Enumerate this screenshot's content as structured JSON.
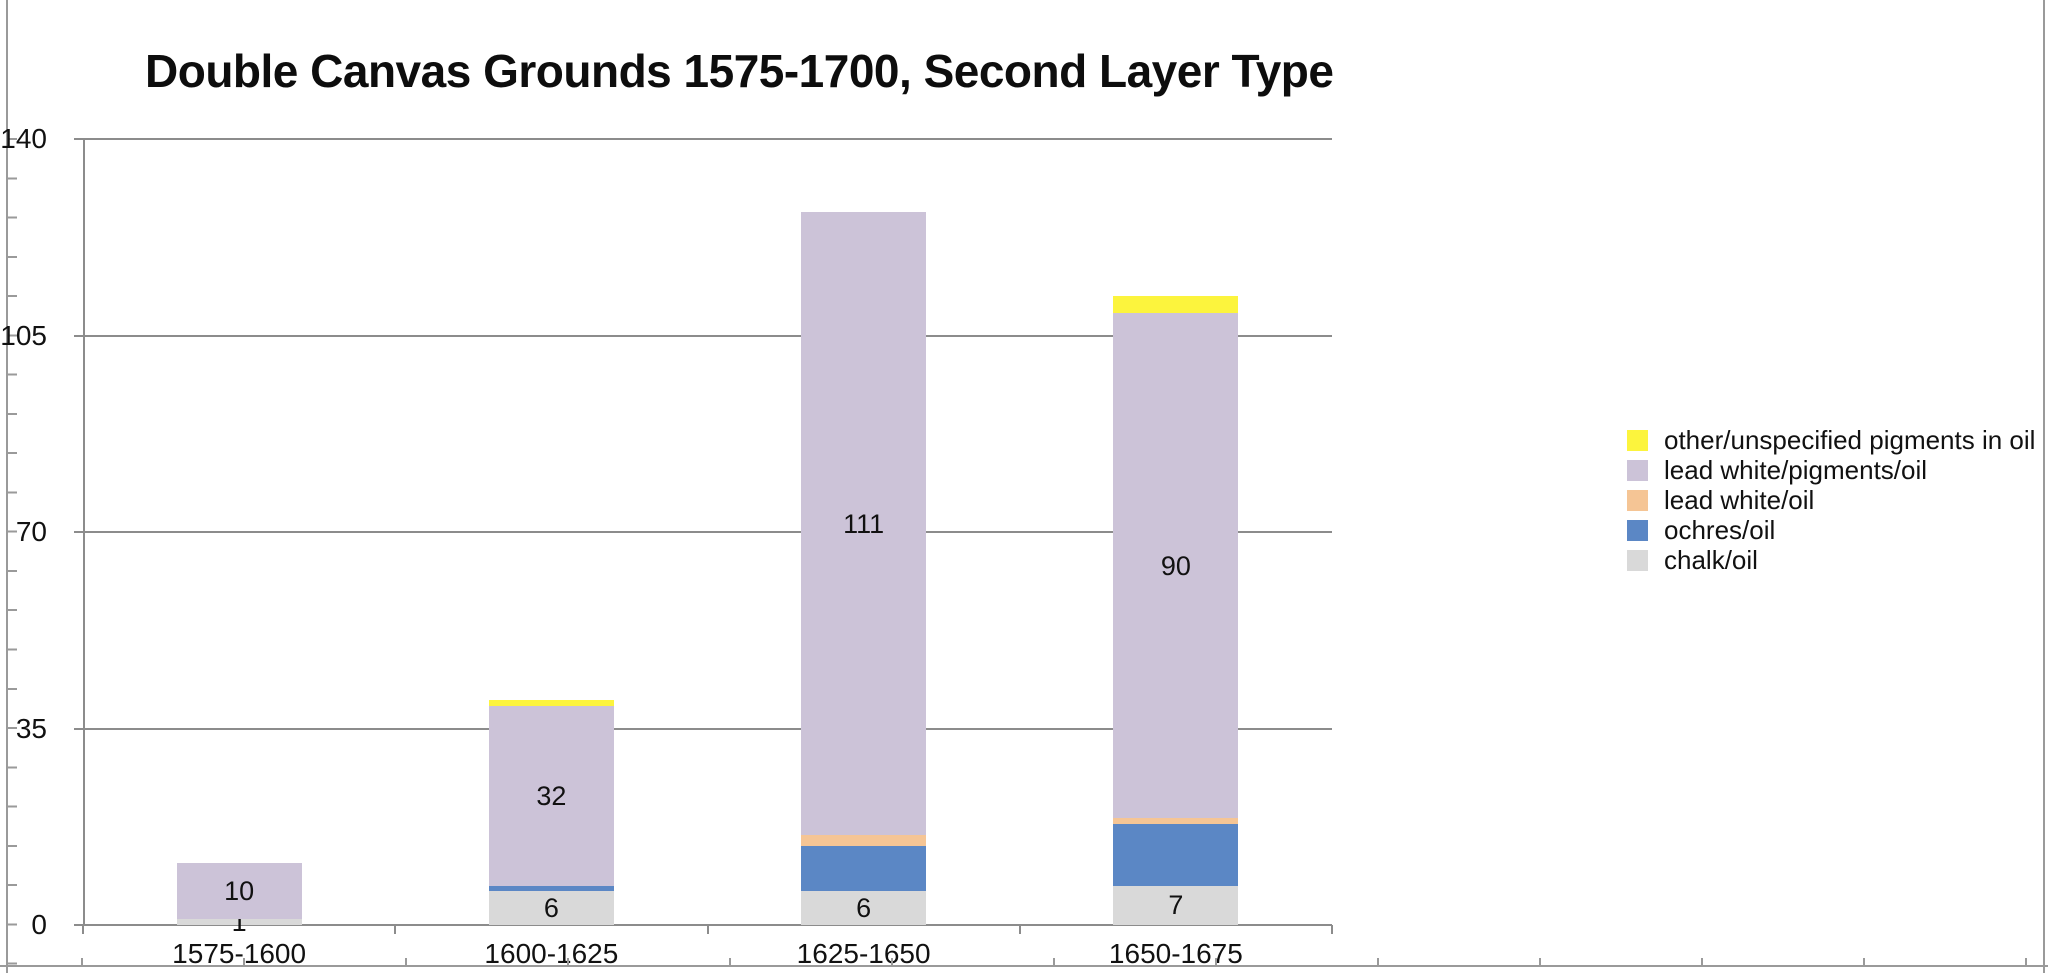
{
  "chart_data": {
    "type": "bar",
    "stacked": true,
    "title": "Double Canvas Grounds 1575-1700, Second Layer Type",
    "categories": [
      "1575-1600",
      "1600-1625",
      "1625-1650",
      "1650-1675"
    ],
    "series": [
      {
        "name": "chalk/oil",
        "color": "#D9D9D9",
        "values": [
          1,
          6,
          6,
          7
        ],
        "show_labels": true
      },
      {
        "name": "ochres/oil",
        "color": "#5B87C5",
        "values": [
          0,
          1,
          8,
          11
        ],
        "show_labels": false
      },
      {
        "name": "lead white/oil",
        "color": "#F5C595",
        "values": [
          0,
          0,
          2,
          1
        ],
        "show_labels": false
      },
      {
        "name": "lead white/pigments/oil",
        "color": "#CCC3D8",
        "values": [
          10,
          32,
          111,
          90
        ],
        "show_labels": true
      },
      {
        "name": "other/unspecified pigments in oil",
        "color": "#FCF43D",
        "values": [
          0,
          1,
          0,
          3
        ],
        "show_labels": false
      }
    ],
    "totals": [
      11,
      40,
      127,
      112
    ],
    "xlabel": "",
    "ylabel": "",
    "ylim": [
      0,
      140
    ],
    "yticks": [
      0,
      35,
      70,
      105,
      140
    ],
    "gridlines": true,
    "legend_position": "right",
    "legend_order_top_to_bottom": [
      "other/unspecified pigments in oil",
      "lead white/pigments/oil",
      "lead white/oil",
      "ochres/oil",
      "chalk/oil"
    ]
  }
}
